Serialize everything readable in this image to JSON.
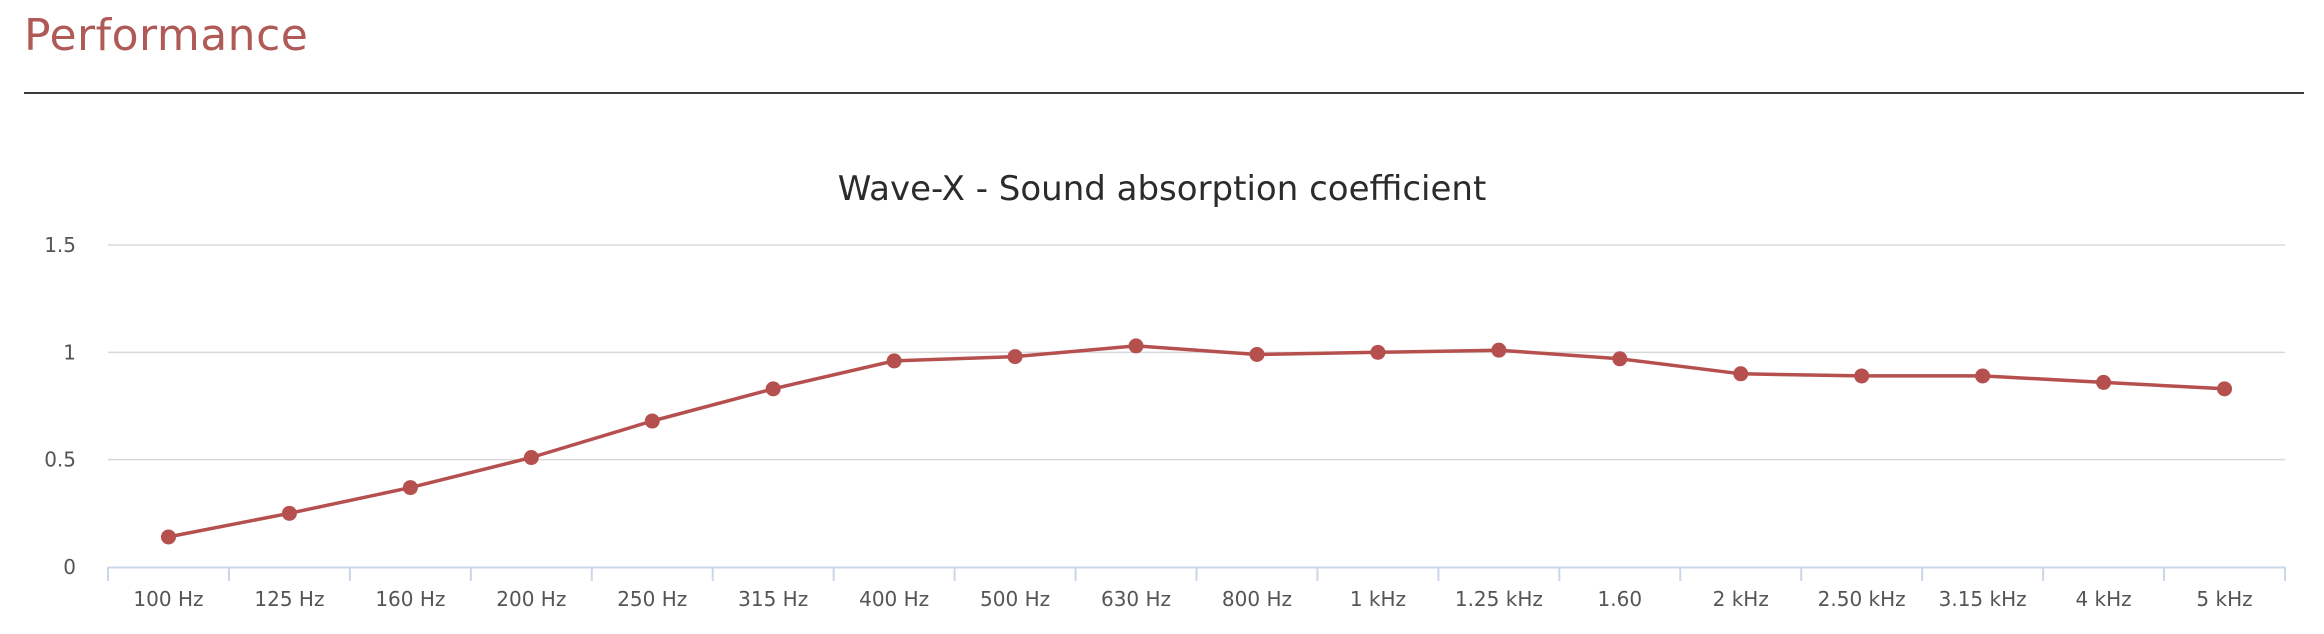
{
  "page": {
    "title": "Performance"
  },
  "colors": {
    "accent": "#b05a58",
    "series": "#b5504e",
    "grid": "#d9d9d9",
    "axis": "#ccd6eb",
    "text": "#555555"
  },
  "chart_data": {
    "type": "line",
    "title": "Wave-X - Sound absorption coefficient",
    "xlabel": "",
    "ylabel": "",
    "grid": true,
    "legend": "none",
    "ylim": [
      0,
      1.5
    ],
    "yticks": [
      0,
      0.5,
      1,
      1.5
    ],
    "ytick_labels": [
      "0",
      "0.5",
      "1",
      "1.5"
    ],
    "categories": [
      "100 Hz",
      "125 Hz",
      "160 Hz",
      "200 Hz",
      "250 Hz",
      "315 Hz",
      "400 Hz",
      "500 Hz",
      "630 Hz",
      "800 Hz",
      "1 kHz",
      "1.25 kHz",
      "1.60",
      "2 kHz",
      "2.50 kHz",
      "3.15 kHz",
      "4 kHz",
      "5 kHz"
    ],
    "series": [
      {
        "values": [
          0.14,
          0.25,
          0.37,
          0.51,
          0.68,
          0.83,
          0.96,
          0.98,
          1.03,
          0.99,
          1.0,
          1.01,
          0.97,
          0.9,
          0.89,
          0.89,
          0.86,
          0.83
        ]
      }
    ]
  }
}
